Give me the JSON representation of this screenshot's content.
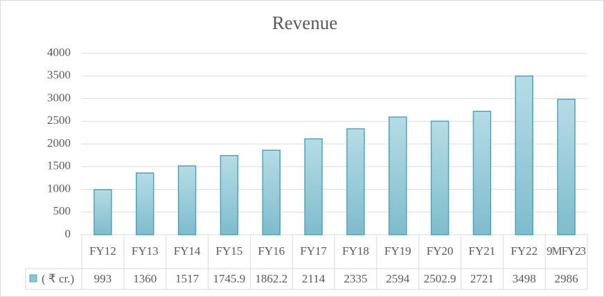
{
  "chart_data": {
    "type": "bar",
    "title": "Revenue",
    "categories": [
      "FY12",
      "FY13",
      "FY14",
      "FY15",
      "FY16",
      "FY17",
      "FY18",
      "FY19",
      "FY20",
      "FY21",
      "FY22",
      "9MFY23"
    ],
    "series": [
      {
        "name": "( ₹ cr.)",
        "color": "#8cc7d6",
        "values": [
          993,
          1360,
          1517,
          1745.9,
          1862.2,
          2114,
          2335,
          2594,
          2502.9,
          2721,
          3498,
          2986
        ]
      }
    ],
    "ylim": [
      0,
      4000
    ],
    "yticks": [
      0,
      500,
      1000,
      1500,
      2000,
      2500,
      3000,
      3500,
      4000
    ],
    "grid": true
  }
}
